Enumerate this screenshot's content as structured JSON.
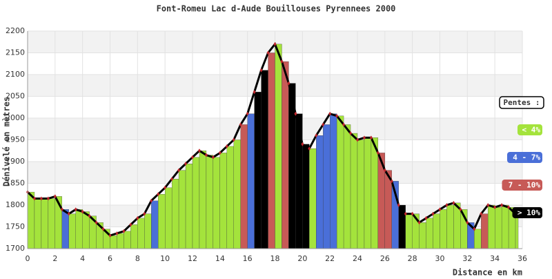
{
  "chart_data": {
    "type": "profile",
    "title": "Font-Romeu Lac d-Aude Bouillouses Pyrennees 2000",
    "x_label": "Distance en km",
    "y_label": "Dénivelé en mètres",
    "x": [
      0,
      0.5,
      1,
      1.5,
      2,
      2.5,
      3,
      3.5,
      4,
      4.5,
      5,
      5.5,
      6,
      6.5,
      7,
      7.5,
      8,
      8.5,
      9,
      9.5,
      10,
      10.5,
      11,
      11.5,
      12,
      12.5,
      13,
      13.5,
      14,
      14.5,
      15,
      15.5,
      16,
      16.5,
      17,
      17.5,
      18,
      18.5,
      19,
      19.5,
      20,
      20.5,
      21,
      21.5,
      22,
      22.5,
      23,
      23.5,
      24,
      24.5,
      25,
      25.5,
      26,
      26.5,
      27,
      27.5,
      28,
      28.5,
      29,
      29.5,
      30,
      30.5,
      31,
      31.5,
      32,
      32.5,
      33,
      33.5,
      34,
      34.5,
      35,
      35.5
    ],
    "values": [
      1830,
      1815,
      1815,
      1815,
      1820,
      1790,
      1780,
      1790,
      1785,
      1775,
      1760,
      1745,
      1730,
      1735,
      1740,
      1755,
      1770,
      1780,
      1810,
      1825,
      1840,
      1860,
      1880,
      1895,
      1910,
      1925,
      1915,
      1910,
      1920,
      1935,
      1950,
      1985,
      2010,
      2060,
      2110,
      2150,
      2170,
      2130,
      2080,
      2010,
      1940,
      1930,
      1960,
      1985,
      2010,
      2005,
      1985,
      1965,
      1950,
      1955,
      1955,
      1920,
      1880,
      1855,
      1800,
      1780,
      1780,
      1760,
      1770,
      1780,
      1790,
      1800,
      1805,
      1790,
      1760,
      1745,
      1780,
      1800,
      1795,
      1800,
      1795,
      1780
    ],
    "colors": [
      "#a4e33c",
      "#a4e33c",
      "#a4e33c",
      "#a4e33c",
      "#a4e33c",
      "#4a6fd8",
      "#a4e33c",
      "#a4e33c",
      "#a4e33c",
      "#a4e33c",
      "#a4e33c",
      "#a4e33c",
      "#a4e33c",
      "#a4e33c",
      "#a4e33c",
      "#a4e33c",
      "#a4e33c",
      "#a4e33c",
      "#4a6fd8",
      "#a4e33c",
      "#a4e33c",
      "#a4e33c",
      "#a4e33c",
      "#a4e33c",
      "#a4e33c",
      "#a4e33c",
      "#a4e33c",
      "#a4e33c",
      "#a4e33c",
      "#a4e33c",
      "#a4e33c",
      "#c75a57",
      "#4a6fd8",
      "#000000",
      "#000000",
      "#c75a57",
      "#a4e33c",
      "#c75a57",
      "#000000",
      "#000000",
      "#000000",
      "#a4e33c",
      "#4a6fd8",
      "#4a6fd8",
      "#4a6fd8",
      "#a4e33c",
      "#a4e33c",
      "#a4e33c",
      "#a4e33c",
      "#a4e33c",
      "#a4e33c",
      "#c75a57",
      "#c75a57",
      "#4a6fd8",
      "#000000",
      "#a4e33c",
      "#a4e33c",
      "#a4e33c",
      "#a4e33c",
      "#a4e33c",
      "#a4e33c",
      "#a4e33c",
      "#a4e33c",
      "#a4e33c",
      "#4a6fd8",
      "#a4e33c",
      "#c75a57",
      "#a4e33c",
      "#a4e33c",
      "#a4e33c",
      "#a4e33c",
      "#a4e33c"
    ],
    "line_color": "#000000",
    "marker_color": "#c0262c",
    "xlim": [
      0,
      36
    ],
    "xticks": [
      0,
      2,
      4,
      6,
      8,
      10,
      12,
      14,
      16,
      18,
      20,
      22,
      24,
      26,
      28,
      30,
      32,
      34,
      36
    ],
    "ylim": [
      1700,
      2200
    ],
    "yticks": [
      1700,
      1750,
      1800,
      1850,
      1900,
      1950,
      2000,
      2050,
      2100,
      2150,
      2200
    ],
    "grid": true,
    "legend": {
      "title": "Pentes :",
      "items": [
        {
          "label": "< 4%",
          "color": "#a4e33c"
        },
        {
          "label": "4 - 7%",
          "color": "#4a6fd8"
        },
        {
          "label": "7 - 10%",
          "color": "#c75a57"
        },
        {
          "label": "> 10%",
          "color": "#000000"
        }
      ]
    }
  }
}
